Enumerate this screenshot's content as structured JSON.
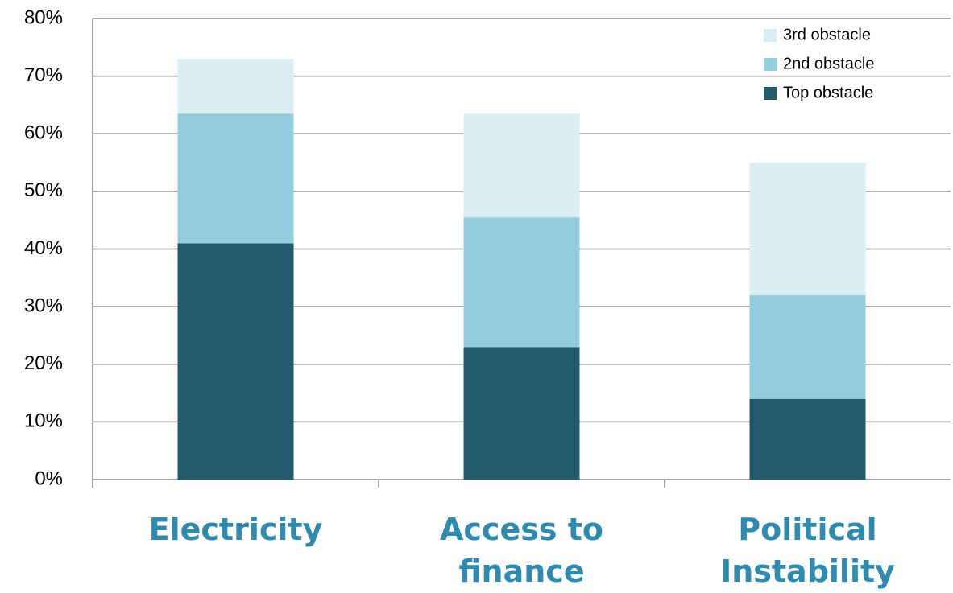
{
  "chart_data": {
    "type": "stacked_bar",
    "categories": [
      "Electricity",
      "Access to finance",
      "Political Instability"
    ],
    "series": [
      {
        "name": "Top obstacle",
        "color": "#225a69",
        "values": [
          41,
          23,
          14
        ]
      },
      {
        "name": "2nd obstacle",
        "color": "#93cddc",
        "values": [
          22.5,
          22.5,
          18
        ]
      },
      {
        "name": "3rd obstacle",
        "color": "#dbeef4",
        "values": [
          9.5,
          18,
          23
        ]
      }
    ],
    "ylim": [
      0,
      80
    ],
    "yticks": [
      {
        "value": 0,
        "label": "0%"
      },
      {
        "value": 10,
        "label": "10%"
      },
      {
        "value": 20,
        "label": "20%"
      },
      {
        "value": 30,
        "label": "30%"
      },
      {
        "value": 40,
        "label": "40%"
      },
      {
        "value": 50,
        "label": "50%"
      },
      {
        "value": 60,
        "label": "60%"
      },
      {
        "value": 70,
        "label": "70%"
      },
      {
        "value": 80,
        "label": "80%"
      }
    ],
    "grid": true,
    "legend": "top-right"
  }
}
